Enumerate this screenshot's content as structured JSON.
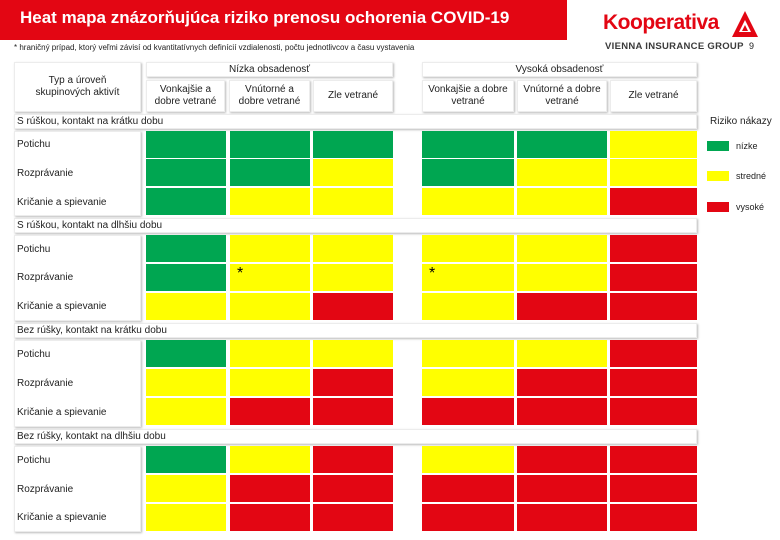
{
  "header": {
    "title": "Heat mapa znázorňujúca riziko prenosu ochorenia COVID-19",
    "footnote": "* hraničný prípad, ktorý veľmi závisí od kvantitatívnych definícií vzdialenosti, počtu jednotlivcov a času vystavenia",
    "page_number": "9"
  },
  "logo": {
    "name": "Kooperativa",
    "tagline": "VIENNA INSURANCE GROUP",
    "brand_color": "#e30613"
  },
  "table": {
    "row_header_label": "Typ a úroveň skupinových aktivít",
    "groups": [
      {
        "label": "Nízka obsadenosť"
      },
      {
        "label": "Vysoká obsadenosť"
      }
    ],
    "ventilation": [
      "Vonkajšie a dobre vetrané",
      "Vnútorné a dobre vetrané",
      "Zle vetrané",
      "Vonkajšie a dobre vetrané",
      "Vnútorné a dobre vetrané",
      "Zle vetrané"
    ],
    "sections": [
      {
        "label": "S rúškou, kontakt na krátku dobu",
        "rows": [
          {
            "label": "Potichu",
            "levels": [
              "nízke",
              "nízke",
              "nízke",
              "nízke",
              "nízke",
              "stredné"
            ]
          },
          {
            "label": "Rozprávanie",
            "levels": [
              "nízke",
              "nízke",
              "stredné",
              "nízke",
              "stredné",
              "stredné"
            ]
          },
          {
            "label": "Kričanie a spievanie",
            "levels": [
              "nízke",
              "stredné",
              "stredné",
              "stredné",
              "stredné",
              "vysoké"
            ]
          }
        ]
      },
      {
        "label": "S rúškou, kontakt na dlhšiu dobu",
        "rows": [
          {
            "label": "Potichu",
            "levels": [
              "nízke",
              "stredné",
              "stredné",
              "stredné",
              "stredné",
              "vysoké"
            ]
          },
          {
            "label": "Rozprávanie",
            "levels": [
              "nízke",
              "stredné",
              "stredné",
              "stredné",
              "stredné",
              "vysoké"
            ],
            "marks": [
              "",
              "*",
              "",
              "*",
              "",
              ""
            ]
          },
          {
            "label": "Kričanie a spievanie",
            "levels": [
              "stredné",
              "stredné",
              "vysoké",
              "stredné",
              "vysoké",
              "vysoké"
            ]
          }
        ]
      },
      {
        "label": "Bez rúšky, kontakt na krátku dobu",
        "rows": [
          {
            "label": "Potichu",
            "levels": [
              "nízke",
              "stredné",
              "stredné",
              "stredné",
              "stredné",
              "vysoké"
            ]
          },
          {
            "label": "Rozprávanie",
            "levels": [
              "stredné",
              "stredné",
              "vysoké",
              "stredné",
              "vysoké",
              "vysoké"
            ]
          },
          {
            "label": "Kričanie a spievanie",
            "levels": [
              "stredné",
              "vysoké",
              "vysoké",
              "vysoké",
              "vysoké",
              "vysoké"
            ]
          }
        ]
      },
      {
        "label": "Bez rúšky, kontakt na dlhšiu dobu",
        "rows": [
          {
            "label": "Potichu",
            "levels": [
              "nízke",
              "stredné",
              "vysoké",
              "stredné",
              "vysoké",
              "vysoké"
            ]
          },
          {
            "label": "Rozprávanie",
            "levels": [
              "stredné",
              "vysoké",
              "vysoké",
              "vysoké",
              "vysoké",
              "vysoké"
            ]
          },
          {
            "label": "Kričanie a spievanie",
            "levels": [
              "stredné",
              "vysoké",
              "vysoké",
              "vysoké",
              "vysoké",
              "vysoké"
            ]
          }
        ]
      }
    ]
  },
  "legend": {
    "title": "Riziko nákazy",
    "items": [
      {
        "label": "nízke",
        "color": "#00a651"
      },
      {
        "label": "stredné",
        "color": "#ffff00"
      },
      {
        "label": "vysoké",
        "color": "#e30613"
      }
    ]
  }
}
